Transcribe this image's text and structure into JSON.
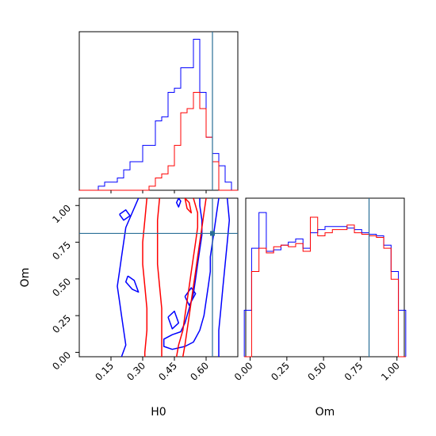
{
  "colors": {
    "series_a": "#0000ff",
    "series_b": "#ff0000",
    "truth": "#2a6f97",
    "axes": "#000000"
  },
  "chart_data": [
    {
      "type": "histogram",
      "panel": "H0 marginal",
      "xlim": [
        0.0,
        0.75
      ],
      "bins": [
        0.0,
        0.03,
        0.06,
        0.09,
        0.12,
        0.15,
        0.18,
        0.21,
        0.24,
        0.27,
        0.3,
        0.33,
        0.36,
        0.39,
        0.42,
        0.45,
        0.48,
        0.51,
        0.54,
        0.57,
        0.6,
        0.63,
        0.66,
        0.69,
        0.72,
        0.75
      ],
      "series": [
        {
          "color": "blue",
          "values": [
            0,
            0,
            0,
            1,
            2,
            2,
            3,
            5,
            7,
            7,
            11,
            11,
            17,
            18,
            24,
            25,
            30,
            30,
            37,
            24,
            13,
            9,
            6,
            2,
            0
          ]
        },
        {
          "color": "red",
          "values": [
            0,
            0,
            0,
            0,
            0,
            0,
            0,
            0,
            0,
            0,
            0,
            1,
            3,
            4,
            6,
            11,
            19,
            20,
            24,
            20,
            13,
            7,
            0,
            0,
            0
          ]
        }
      ],
      "truth": 0.63
    },
    {
      "type": "contour",
      "panel": "H0 vs Om",
      "xlim": [
        0.0,
        0.75
      ],
      "ylim": [
        -0.03,
        1.05
      ],
      "xticks": [
        "0.15",
        "0.30",
        "0.45",
        "0.60"
      ],
      "yticks": [
        "0.00",
        "0.25",
        "0.50",
        "0.75",
        "1.00"
      ],
      "xlabel": "H0",
      "ylabel": "Om",
      "truth": [
        0.63,
        0.81
      ],
      "series": [
        {
          "color": "blue",
          "contours": [
            [
              [
                0.2,
                -0.03
              ],
              [
                0.22,
                0.05
              ],
              [
                0.21,
                0.15
              ],
              [
                0.2,
                0.25
              ],
              [
                0.19,
                0.35
              ],
              [
                0.18,
                0.45
              ],
              [
                0.19,
                0.55
              ],
              [
                0.2,
                0.65
              ],
              [
                0.21,
                0.75
              ],
              [
                0.22,
                0.85
              ],
              [
                0.25,
                0.95
              ],
              [
                0.28,
                1.05
              ]
            ],
            [
              [
                0.66,
                1.05
              ],
              [
                0.65,
                0.95
              ],
              [
                0.64,
                0.85
              ],
              [
                0.63,
                0.75
              ],
              [
                0.62,
                0.65
              ],
              [
                0.62,
                0.55
              ],
              [
                0.61,
                0.45
              ],
              [
                0.6,
                0.35
              ],
              [
                0.59,
                0.25
              ],
              [
                0.57,
                0.15
              ],
              [
                0.54,
                0.07
              ],
              [
                0.5,
                0.04
              ],
              [
                0.44,
                0.02
              ],
              [
                0.4,
                0.04
              ],
              [
                0.4,
                0.09
              ],
              [
                0.44,
                0.12
              ],
              [
                0.48,
                0.14
              ],
              [
                0.5,
                0.2
              ],
              [
                0.52,
                0.3
              ],
              [
                0.54,
                0.4
              ],
              [
                0.55,
                0.5
              ],
              [
                0.56,
                0.6
              ],
              [
                0.57,
                0.7
              ],
              [
                0.58,
                0.8
              ],
              [
                0.58,
                0.9
              ],
              [
                0.57,
                1.0
              ],
              [
                0.57,
                1.05
              ]
            ],
            [
              [
                0.7,
                1.05
              ],
              [
                0.71,
                0.9
              ],
              [
                0.7,
                0.75
              ],
              [
                0.69,
                0.6
              ],
              [
                0.68,
                0.45
              ],
              [
                0.67,
                0.3
              ],
              [
                0.66,
                0.15
              ],
              [
                0.66,
                0.0
              ],
              [
                0.66,
                -0.03
              ]
            ],
            [
              [
                0.19,
                0.94
              ],
              [
                0.22,
                0.97
              ],
              [
                0.24,
                0.93
              ],
              [
                0.21,
                0.9
              ],
              [
                0.19,
                0.94
              ]
            ],
            [
              [
                0.23,
                0.52
              ],
              [
                0.26,
                0.49
              ],
              [
                0.28,
                0.41
              ],
              [
                0.25,
                0.43
              ],
              [
                0.22,
                0.48
              ],
              [
                0.23,
                0.52
              ]
            ],
            [
              [
                0.42,
                0.24
              ],
              [
                0.45,
                0.28
              ],
              [
                0.47,
                0.2
              ],
              [
                0.44,
                0.16
              ],
              [
                0.42,
                0.24
              ]
            ],
            [
              [
                0.5,
                0.38
              ],
              [
                0.53,
                0.44
              ],
              [
                0.55,
                0.4
              ],
              [
                0.52,
                0.32
              ],
              [
                0.5,
                0.38
              ]
            ],
            [
              [
                0.47,
                1.05
              ],
              [
                0.46,
                1.02
              ],
              [
                0.47,
                0.99
              ],
              [
                0.48,
                1.03
              ],
              [
                0.47,
                1.05
              ]
            ]
          ]
        },
        {
          "color": "red",
          "contours": [
            [
              [
                0.32,
                1.05
              ],
              [
                0.31,
                0.9
              ],
              [
                0.3,
                0.75
              ],
              [
                0.3,
                0.6
              ],
              [
                0.31,
                0.45
              ],
              [
                0.32,
                0.3
              ],
              [
                0.32,
                0.15
              ],
              [
                0.31,
                0.0
              ],
              [
                0.31,
                -0.03
              ]
            ],
            [
              [
                0.38,
                1.05
              ],
              [
                0.37,
                0.9
              ],
              [
                0.37,
                0.75
              ],
              [
                0.37,
                0.6
              ],
              [
                0.38,
                0.45
              ],
              [
                0.39,
                0.3
              ],
              [
                0.39,
                0.15
              ],
              [
                0.39,
                0.0
              ],
              [
                0.39,
                -0.03
              ]
            ],
            [
              [
                0.54,
                1.05
              ],
              [
                0.56,
                0.95
              ],
              [
                0.56,
                0.85
              ],
              [
                0.55,
                0.75
              ],
              [
                0.54,
                0.65
              ],
              [
                0.53,
                0.55
              ],
              [
                0.52,
                0.45
              ],
              [
                0.51,
                0.35
              ],
              [
                0.5,
                0.25
              ],
              [
                0.49,
                0.15
              ],
              [
                0.47,
                0.05
              ],
              [
                0.46,
                -0.03
              ]
            ],
            [
              [
                0.6,
                1.05
              ],
              [
                0.59,
                0.95
              ],
              [
                0.58,
                0.85
              ],
              [
                0.57,
                0.75
              ],
              [
                0.56,
                0.65
              ],
              [
                0.55,
                0.55
              ],
              [
                0.54,
                0.45
              ],
              [
                0.53,
                0.35
              ],
              [
                0.52,
                0.25
              ],
              [
                0.51,
                0.15
              ],
              [
                0.5,
                0.05
              ],
              [
                0.49,
                -0.03
              ]
            ],
            [
              [
                0.5,
                1.05
              ],
              [
                0.51,
                0.98
              ],
              [
                0.53,
                0.95
              ],
              [
                0.52,
                1.02
              ],
              [
                0.5,
                1.05
              ]
            ]
          ]
        }
      ]
    },
    {
      "type": "histogram",
      "panel": "Om marginal",
      "xlim": [
        -0.03,
        1.05
      ],
      "xticks": [
        "0.00",
        "0.25",
        "0.50",
        "0.75",
        "1.00"
      ],
      "xlabel": "Om",
      "bins": [
        -0.04,
        0.01,
        0.06,
        0.11,
        0.16,
        0.21,
        0.26,
        0.31,
        0.36,
        0.41,
        0.46,
        0.51,
        0.56,
        0.61,
        0.66,
        0.71,
        0.76,
        0.81,
        0.86,
        0.91,
        0.96,
        1.01,
        1.06
      ],
      "series": [
        {
          "color": "blue",
          "values": [
            0.3,
            0.7,
            0.93,
            0.68,
            0.69,
            0.72,
            0.74,
            0.76,
            0.7,
            0.8,
            0.82,
            0.84,
            0.84,
            0.84,
            0.83,
            0.82,
            0.8,
            0.79,
            0.78,
            0.72,
            0.55,
            0.3
          ]
        },
        {
          "color": "red",
          "values": [
            0.0,
            0.55,
            0.7,
            0.67,
            0.71,
            0.72,
            0.71,
            0.73,
            0.68,
            0.9,
            0.78,
            0.8,
            0.82,
            0.82,
            0.85,
            0.8,
            0.79,
            0.78,
            0.77,
            0.7,
            0.5,
            0.0
          ]
        }
      ],
      "truth": 0.81
    }
  ]
}
